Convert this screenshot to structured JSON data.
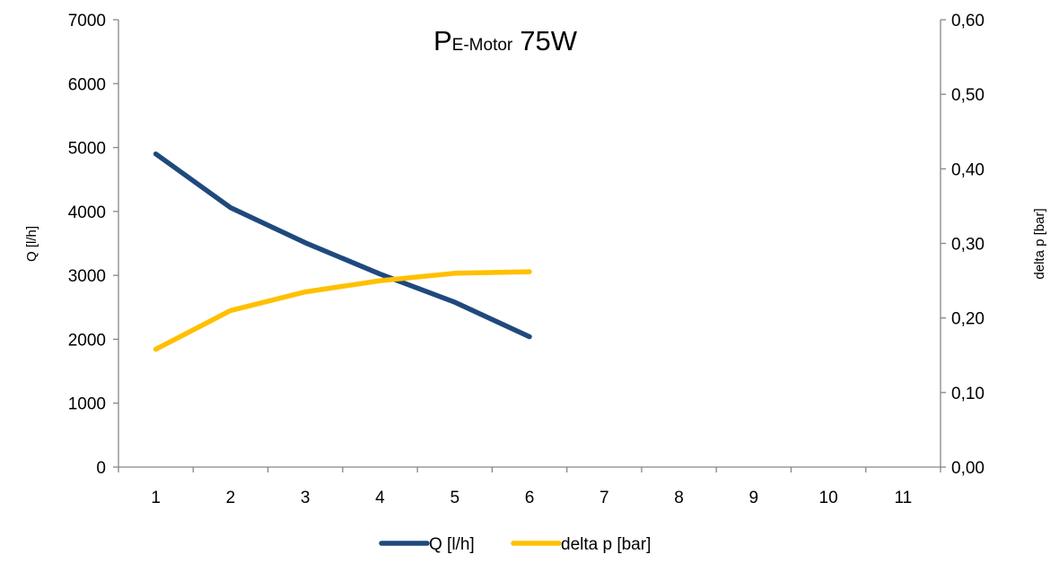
{
  "chart_data": {
    "type": "line",
    "title": {
      "main": "P",
      "subscript": "E-Motor",
      "suffix": "75W"
    },
    "x": [
      1,
      2,
      3,
      4,
      5,
      6,
      7,
      8,
      9,
      10,
      11
    ],
    "x_tick_labels": [
      "1",
      "2",
      "3",
      "4",
      "5",
      "6",
      "7",
      "8",
      "9",
      "10",
      "11"
    ],
    "y_left": {
      "label": "Q [l/h]",
      "range": [
        0,
        7000
      ],
      "ticks": [
        0,
        1000,
        2000,
        3000,
        4000,
        5000,
        6000,
        7000
      ],
      "tick_labels": [
        "0",
        "1000",
        "2000",
        "3000",
        "4000",
        "5000",
        "6000",
        "7000"
      ]
    },
    "y_right": {
      "label": "delta p [bar]",
      "range": [
        0,
        0.6
      ],
      "ticks": [
        0,
        0.1,
        0.2,
        0.3,
        0.4,
        0.5,
        0.6
      ],
      "tick_labels": [
        "0,00",
        "0,10",
        "0,20",
        "0,30",
        "0,40",
        "0,50",
        "0,60"
      ]
    },
    "series": [
      {
        "name": "Q [l/h]",
        "axis": "left",
        "color": "#1F497D",
        "x": [
          1,
          2,
          3,
          4,
          5,
          6
        ],
        "values": [
          4900,
          4060,
          3510,
          3020,
          2580,
          2040
        ]
      },
      {
        "name": "delta p [bar]",
        "axis": "right",
        "color": "#FFC000",
        "x": [
          1,
          2,
          3,
          4,
          5,
          6
        ],
        "values": [
          0.158,
          0.21,
          0.235,
          0.25,
          0.26,
          0.262
        ]
      }
    ],
    "grid": false,
    "legend_position": "bottom"
  }
}
